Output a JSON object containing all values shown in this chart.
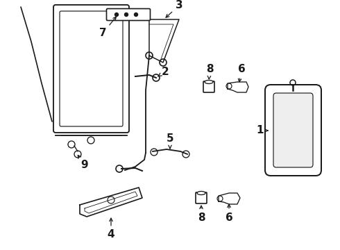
{
  "bg_color": "#ffffff",
  "line_color": "#1a1a1a",
  "figsize": [
    4.9,
    3.6
  ],
  "dpi": 100,
  "label_fontsize": 11
}
